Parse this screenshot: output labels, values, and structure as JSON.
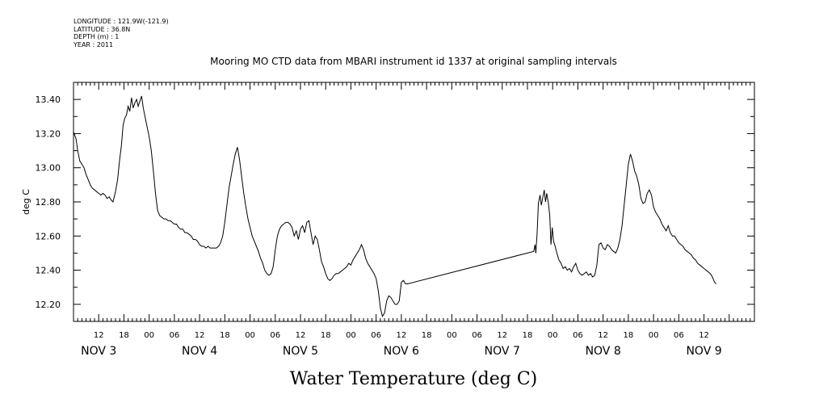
{
  "header": {
    "longitude": "LONGITUDE : 121.9W(-121.9)",
    "latitude": "LATITUDE : 36.8N",
    "depth": "DEPTH (m) : 1",
    "year": "YEAR : 2011"
  },
  "chart_data": {
    "type": "line",
    "title": "Mooring MO CTD data from MBARI instrument id 1337 at original sampling intervals",
    "xlabel": "Water Temperature (deg C)",
    "ylabel": "deg C",
    "x_unit": "hours from 2011-11-03 06:00",
    "xlim": [
      0,
      162
    ],
    "ylim": [
      12.1,
      13.5
    ],
    "y_ticks": [
      "12.20",
      "12.40",
      "12.60",
      "12.80",
      "13.00",
      "13.20",
      "13.40"
    ],
    "hour_ticks": [
      "12",
      "18",
      "00",
      "06",
      "12",
      "18",
      "00",
      "06",
      "12",
      "18",
      "00",
      "06",
      "12",
      "18",
      "00",
      "06",
      "12",
      "18",
      "00",
      "06",
      "12",
      "18",
      "00",
      "06",
      "12"
    ],
    "day_labels": [
      "NOV  3",
      "NOV  4",
      "NOV  5",
      "NOV  6",
      "NOV  7",
      "NOV  8",
      "NOV  9"
    ],
    "series": [
      {
        "values": [
          [
            0.0,
            13.21
          ],
          [
            0.6,
            13.17
          ],
          [
            1.0,
            13.1
          ],
          [
            1.5,
            13.04
          ],
          [
            2.0,
            13.02
          ],
          [
            2.5,
            13.0
          ],
          [
            3.0,
            12.96
          ],
          [
            3.5,
            12.93
          ],
          [
            4.0,
            12.9
          ],
          [
            4.5,
            12.88
          ],
          [
            5.0,
            12.87
          ],
          [
            5.5,
            12.86
          ],
          [
            6.0,
            12.85
          ],
          [
            6.5,
            12.84
          ],
          [
            7.0,
            12.85
          ],
          [
            7.5,
            12.84
          ],
          [
            8.0,
            12.82
          ],
          [
            8.5,
            12.83
          ],
          [
            9.0,
            12.81
          ],
          [
            9.4,
            12.8
          ],
          [
            10.0,
            12.86
          ],
          [
            10.5,
            12.93
          ],
          [
            11.0,
            13.05
          ],
          [
            11.4,
            13.13
          ],
          [
            11.8,
            13.25
          ],
          [
            12.2,
            13.29
          ],
          [
            12.6,
            13.31
          ],
          [
            13.0,
            13.36
          ],
          [
            13.4,
            13.33
          ],
          [
            13.8,
            13.41
          ],
          [
            14.2,
            13.35
          ],
          [
            14.6,
            13.38
          ],
          [
            15.0,
            13.4
          ],
          [
            15.4,
            13.36
          ],
          [
            15.8,
            13.39
          ],
          [
            16.2,
            13.42
          ],
          [
            16.6,
            13.35
          ],
          [
            17.0,
            13.3
          ],
          [
            17.5,
            13.24
          ],
          [
            18.0,
            13.18
          ],
          [
            18.5,
            13.1
          ],
          [
            19.0,
            12.98
          ],
          [
            19.5,
            12.85
          ],
          [
            20.0,
            12.75
          ],
          [
            20.5,
            12.72
          ],
          [
            21.0,
            12.71
          ],
          [
            21.5,
            12.7
          ],
          [
            22.0,
            12.7
          ],
          [
            22.5,
            12.69
          ],
          [
            23.0,
            12.69
          ],
          [
            23.5,
            12.68
          ],
          [
            24.0,
            12.67
          ],
          [
            24.5,
            12.67
          ],
          [
            25.0,
            12.65
          ],
          [
            25.5,
            12.64
          ],
          [
            26.0,
            12.64
          ],
          [
            26.5,
            12.62
          ],
          [
            27.0,
            12.62
          ],
          [
            27.5,
            12.61
          ],
          [
            28.0,
            12.6
          ],
          [
            28.5,
            12.58
          ],
          [
            29.0,
            12.58
          ],
          [
            29.5,
            12.57
          ],
          [
            30.0,
            12.55
          ],
          [
            30.5,
            12.54
          ],
          [
            31.0,
            12.54
          ],
          [
            31.5,
            12.53
          ],
          [
            32.0,
            12.54
          ],
          [
            32.5,
            12.53
          ],
          [
            33.0,
            12.53
          ],
          [
            33.5,
            12.53
          ],
          [
            34.0,
            12.53
          ],
          [
            34.5,
            12.54
          ],
          [
            35.0,
            12.56
          ],
          [
            35.5,
            12.6
          ],
          [
            36.0,
            12.68
          ],
          [
            36.5,
            12.78
          ],
          [
            37.0,
            12.88
          ],
          [
            37.5,
            12.95
          ],
          [
            38.0,
            13.02
          ],
          [
            38.5,
            13.08
          ],
          [
            39.0,
            13.12
          ],
          [
            39.5,
            13.05
          ],
          [
            40.0,
            12.95
          ],
          [
            40.5,
            12.85
          ],
          [
            41.0,
            12.77
          ],
          [
            41.5,
            12.7
          ],
          [
            42.0,
            12.65
          ],
          [
            42.5,
            12.6
          ],
          [
            43.0,
            12.57
          ],
          [
            43.5,
            12.54
          ],
          [
            44.0,
            12.51
          ],
          [
            44.5,
            12.47
          ],
          [
            45.0,
            12.44
          ],
          [
            45.5,
            12.4
          ],
          [
            46.0,
            12.38
          ],
          [
            46.5,
            12.37
          ],
          [
            47.0,
            12.38
          ],
          [
            47.5,
            12.42
          ],
          [
            48.0,
            12.52
          ],
          [
            48.5,
            12.6
          ],
          [
            49.0,
            12.64
          ],
          [
            49.5,
            12.66
          ],
          [
            50.0,
            12.67
          ],
          [
            50.5,
            12.68
          ],
          [
            51.0,
            12.68
          ],
          [
            51.5,
            12.67
          ],
          [
            52.0,
            12.65
          ],
          [
            52.5,
            12.6
          ],
          [
            53.0,
            12.63
          ],
          [
            53.5,
            12.58
          ],
          [
            54.0,
            12.64
          ],
          [
            54.5,
            12.66
          ],
          [
            55.0,
            12.62
          ],
          [
            55.5,
            12.68
          ],
          [
            56.0,
            12.69
          ],
          [
            56.5,
            12.62
          ],
          [
            57.0,
            12.55
          ],
          [
            57.5,
            12.6
          ],
          [
            58.0,
            12.58
          ],
          [
            58.5,
            12.52
          ],
          [
            59.0,
            12.45
          ],
          [
            59.5,
            12.42
          ],
          [
            60.0,
            12.38
          ],
          [
            60.5,
            12.35
          ],
          [
            61.0,
            12.34
          ],
          [
            61.5,
            12.35
          ],
          [
            62.0,
            12.37
          ],
          [
            62.5,
            12.38
          ],
          [
            63.0,
            12.38
          ],
          [
            63.5,
            12.39
          ],
          [
            64.0,
            12.4
          ],
          [
            64.5,
            12.41
          ],
          [
            65.0,
            12.42
          ],
          [
            65.5,
            12.44
          ],
          [
            66.0,
            12.43
          ],
          [
            66.5,
            12.46
          ],
          [
            67.0,
            12.48
          ],
          [
            67.5,
            12.5
          ],
          [
            68.0,
            12.52
          ],
          [
            68.5,
            12.55
          ],
          [
            69.0,
            12.52
          ],
          [
            69.5,
            12.47
          ],
          [
            70.0,
            12.44
          ],
          [
            70.5,
            12.42
          ],
          [
            71.0,
            12.4
          ],
          [
            71.5,
            12.38
          ],
          [
            72.0,
            12.35
          ],
          [
            72.5,
            12.28
          ],
          [
            73.0,
            12.18
          ],
          [
            73.5,
            12.13
          ],
          [
            74.0,
            12.15
          ],
          [
            74.5,
            12.22
          ],
          [
            75.0,
            12.25
          ],
          [
            75.5,
            12.24
          ],
          [
            76.0,
            12.22
          ],
          [
            76.5,
            12.2
          ],
          [
            77.0,
            12.2
          ],
          [
            77.5,
            12.22
          ],
          [
            78.0,
            12.33
          ],
          [
            78.5,
            12.34
          ],
          [
            79.0,
            12.32
          ],
          [
            79.5,
            12.32
          ],
          [
            109.5,
            12.51
          ],
          [
            109.8,
            12.55
          ],
          [
            110.0,
            12.5
          ],
          [
            110.3,
            12.62
          ],
          [
            110.6,
            12.79
          ],
          [
            111.0,
            12.84
          ],
          [
            111.3,
            12.78
          ],
          [
            111.6,
            12.82
          ],
          [
            112.0,
            12.87
          ],
          [
            112.3,
            12.8
          ],
          [
            112.6,
            12.85
          ],
          [
            113.0,
            12.79
          ],
          [
            113.3,
            12.72
          ],
          [
            113.6,
            12.55
          ],
          [
            113.9,
            12.65
          ],
          [
            114.2,
            12.57
          ],
          [
            114.6,
            12.54
          ],
          [
            115.0,
            12.5
          ],
          [
            115.5,
            12.46
          ],
          [
            116.0,
            12.44
          ],
          [
            116.5,
            12.41
          ],
          [
            117.0,
            12.42
          ],
          [
            117.5,
            12.4
          ],
          [
            118.0,
            12.41
          ],
          [
            118.5,
            12.39
          ],
          [
            119.0,
            12.42
          ],
          [
            119.5,
            12.44
          ],
          [
            120.0,
            12.4
          ],
          [
            120.5,
            12.38
          ],
          [
            121.0,
            12.37
          ],
          [
            121.5,
            12.38
          ],
          [
            122.0,
            12.39
          ],
          [
            122.5,
            12.37
          ],
          [
            123.0,
            12.38
          ],
          [
            123.5,
            12.36
          ],
          [
            124.0,
            12.37
          ],
          [
            124.5,
            12.43
          ],
          [
            125.0,
            12.55
          ],
          [
            125.5,
            12.56
          ],
          [
            126.0,
            12.53
          ],
          [
            126.5,
            12.52
          ],
          [
            127.0,
            12.55
          ],
          [
            127.5,
            12.54
          ],
          [
            128.0,
            12.52
          ],
          [
            128.5,
            12.51
          ],
          [
            129.0,
            12.5
          ],
          [
            129.5,
            12.53
          ],
          [
            130.0,
            12.58
          ],
          [
            130.5,
            12.66
          ],
          [
            131.0,
            12.78
          ],
          [
            131.5,
            12.9
          ],
          [
            132.0,
            13.02
          ],
          [
            132.5,
            13.08
          ],
          [
            133.0,
            13.04
          ],
          [
            133.5,
            12.98
          ],
          [
            134.0,
            12.95
          ],
          [
            134.5,
            12.9
          ],
          [
            135.0,
            12.82
          ],
          [
            135.5,
            12.79
          ],
          [
            136.0,
            12.8
          ],
          [
            136.5,
            12.85
          ],
          [
            137.0,
            12.87
          ],
          [
            137.5,
            12.84
          ],
          [
            138.0,
            12.77
          ],
          [
            138.5,
            12.74
          ],
          [
            139.0,
            12.72
          ],
          [
            139.5,
            12.7
          ],
          [
            140.0,
            12.67
          ],
          [
            140.5,
            12.65
          ],
          [
            141.0,
            12.63
          ],
          [
            141.5,
            12.66
          ],
          [
            142.0,
            12.62
          ],
          [
            142.5,
            12.6
          ],
          [
            143.0,
            12.6
          ],
          [
            143.5,
            12.58
          ],
          [
            144.0,
            12.56
          ],
          [
            144.5,
            12.55
          ],
          [
            145.0,
            12.54
          ],
          [
            145.5,
            12.52
          ],
          [
            146.0,
            12.51
          ],
          [
            146.5,
            12.5
          ],
          [
            147.0,
            12.49
          ],
          [
            147.5,
            12.47
          ],
          [
            148.0,
            12.46
          ],
          [
            148.5,
            12.44
          ],
          [
            149.0,
            12.43
          ],
          [
            149.5,
            12.42
          ],
          [
            150.0,
            12.41
          ],
          [
            150.5,
            12.4
          ],
          [
            151.0,
            12.39
          ],
          [
            151.5,
            12.38
          ],
          [
            152.0,
            12.36
          ],
          [
            152.5,
            12.33
          ],
          [
            152.9,
            12.32
          ]
        ]
      }
    ],
    "grid": false,
    "legend": "none",
    "colors": {
      "line": "#000000",
      "axes": "#000000",
      "background": "#ffffff"
    }
  }
}
